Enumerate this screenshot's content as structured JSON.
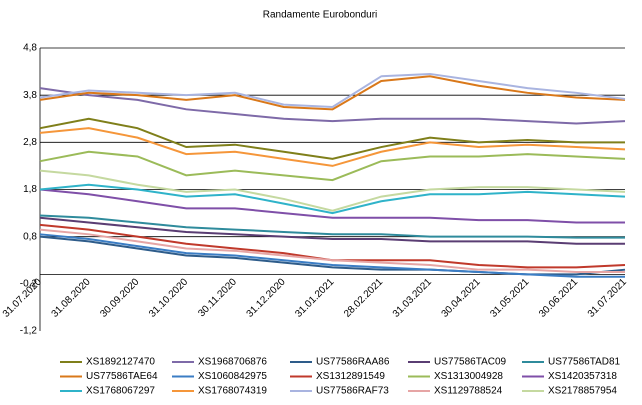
{
  "chart_data": {
    "type": "line",
    "title": "Randamente Eurobonduri",
    "x": [
      "31.07.2020",
      "31.08.2020",
      "30.09.2020",
      "31.10.2020",
      "30.11.2020",
      "31.12.2020",
      "31.01.2021",
      "28.02.2021",
      "31.03.2021",
      "30.04.2021",
      "31.05.2021",
      "30.06.2021",
      "31.07.2021"
    ],
    "ylim": [
      -1.2,
      4.8
    ],
    "yticks": [
      {
        "value": -1.2,
        "label": "-1,2"
      },
      {
        "value": -0.2,
        "label": "-0,2"
      },
      {
        "value": 0.8,
        "label": "0,8"
      },
      {
        "value": 1.8,
        "label": "1,8"
      },
      {
        "value": 2.8,
        "label": "2,8"
      },
      {
        "value": 3.8,
        "label": "3,8"
      },
      {
        "value": 4.8,
        "label": "4,8"
      }
    ],
    "grid": true,
    "legend": "bottom",
    "series": [
      {
        "name": "XS1892127470",
        "color": "#7f7f1a",
        "values": [
          3.1,
          3.3,
          3.1,
          2.7,
          2.75,
          2.6,
          2.45,
          2.7,
          2.9,
          2.8,
          2.85,
          2.8,
          2.8
        ]
      },
      {
        "name": "XS1968706876",
        "color": "#7e6aa8",
        "values": [
          3.95,
          3.8,
          3.7,
          3.5,
          3.4,
          3.3,
          3.25,
          3.3,
          3.3,
          3.3,
          3.25,
          3.2,
          3.25
        ]
      },
      {
        "name": "US77586RAA86",
        "color": "#2e5c8a",
        "values": [
          0.8,
          0.7,
          0.55,
          0.4,
          0.35,
          0.25,
          0.15,
          0.1,
          0.1,
          0.05,
          0.0,
          0.0,
          0.1
        ]
      },
      {
        "name": "US77586TAC09",
        "color": "#5a3d73",
        "values": [
          1.2,
          1.1,
          1.0,
          0.9,
          0.85,
          0.8,
          0.75,
          0.75,
          0.7,
          0.7,
          0.7,
          0.65,
          0.65
        ]
      },
      {
        "name": "US77586TAD81",
        "color": "#2f8b9c",
        "values": [
          1.25,
          1.2,
          1.1,
          1.0,
          0.95,
          0.9,
          0.85,
          0.85,
          0.8,
          0.8,
          0.8,
          0.78,
          0.78
        ]
      },
      {
        "name": "US77586TAE64",
        "color": "#d9781a",
        "values": [
          3.7,
          3.85,
          3.8,
          3.7,
          3.8,
          3.55,
          3.5,
          4.1,
          4.2,
          4.0,
          3.85,
          3.75,
          3.7
        ]
      },
      {
        "name": "XS1060842975",
        "color": "#3b7dc4",
        "values": [
          0.85,
          0.75,
          0.6,
          0.45,
          0.4,
          0.3,
          0.2,
          0.15,
          0.1,
          0.05,
          0.0,
          -0.05,
          -0.05
        ]
      },
      {
        "name": "XS1312891549",
        "color": "#c0392b",
        "values": [
          1.05,
          0.95,
          0.8,
          0.65,
          0.55,
          0.45,
          0.3,
          0.3,
          0.3,
          0.2,
          0.15,
          0.15,
          0.2
        ]
      },
      {
        "name": "XS1313004928",
        "color": "#9bbb59",
        "values": [
          2.4,
          2.6,
          2.5,
          2.1,
          2.2,
          2.1,
          2.0,
          2.4,
          2.5,
          2.5,
          2.55,
          2.5,
          2.45
        ]
      },
      {
        "name": "XS1420357318",
        "color": "#7f4fa8",
        "values": [
          1.8,
          1.7,
          1.55,
          1.4,
          1.4,
          1.3,
          1.2,
          1.2,
          1.2,
          1.15,
          1.15,
          1.1,
          1.1
        ]
      },
      {
        "name": "XS1768067297",
        "color": "#2fb3c9",
        "values": [
          1.8,
          1.9,
          1.8,
          1.65,
          1.7,
          1.5,
          1.3,
          1.55,
          1.7,
          1.7,
          1.75,
          1.7,
          1.65
        ]
      },
      {
        "name": "XS1768074319",
        "color": "#f5963a",
        "values": [
          3.0,
          3.1,
          2.9,
          2.55,
          2.6,
          2.45,
          2.3,
          2.6,
          2.8,
          2.7,
          2.75,
          2.7,
          2.65
        ]
      },
      {
        "name": "US77586RAF73",
        "color": "#a9b4e0",
        "values": [
          3.75,
          3.9,
          3.85,
          3.8,
          3.85,
          3.6,
          3.55,
          4.2,
          4.25,
          4.1,
          3.95,
          3.85,
          3.72
        ]
      },
      {
        "name": "XS1129788524",
        "color": "#e6a5a5",
        "values": [
          0.95,
          0.85,
          0.7,
          0.55,
          0.5,
          0.4,
          0.3,
          0.25,
          0.2,
          0.1,
          0.1,
          0.05,
          0.05
        ]
      },
      {
        "name": "XS2178857954",
        "color": "#c5d9a0",
        "values": [
          2.2,
          2.1,
          1.9,
          1.75,
          1.8,
          1.6,
          1.35,
          1.65,
          1.8,
          1.85,
          1.85,
          1.8,
          1.75
        ]
      }
    ]
  }
}
